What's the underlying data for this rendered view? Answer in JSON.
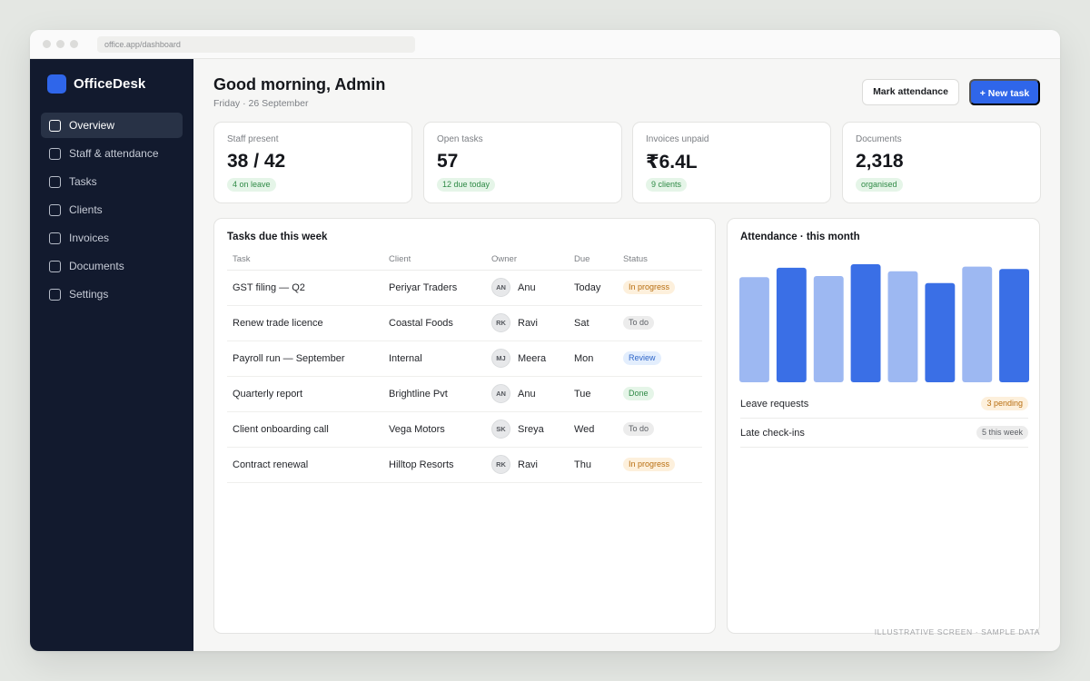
{
  "browser": {
    "url": "office.app/dashboard"
  },
  "sidebar": {
    "brand": "OfficeDesk",
    "items": [
      {
        "label": "Overview",
        "active": true
      },
      {
        "label": "Staff & attendance"
      },
      {
        "label": "Tasks"
      },
      {
        "label": "Clients"
      },
      {
        "label": "Invoices"
      },
      {
        "label": "Documents"
      },
      {
        "label": "Settings"
      }
    ]
  },
  "header": {
    "greeting": "Good morning, Admin",
    "date": "Friday · 26 September",
    "mark_attendance": "Mark attendance",
    "new_task": "+ New task"
  },
  "stats": [
    {
      "label": "Staff present",
      "value": "38 / 42",
      "badge": "4 on leave"
    },
    {
      "label": "Open tasks",
      "value": "57",
      "badge": "12 due today"
    },
    {
      "label": "Invoices unpaid",
      "value": "₹6.4L",
      "badge": "9 clients"
    },
    {
      "label": "Documents",
      "value": "2,318",
      "badge": "organised"
    }
  ],
  "tasks": {
    "title": "Tasks due this week",
    "columns": [
      "Task",
      "Client",
      "Owner",
      "Due",
      "Status"
    ],
    "rows": [
      {
        "task": "GST filing — Q2",
        "client": "Periyar Traders",
        "initials": "AN",
        "owner": "Anu",
        "due": "Today",
        "status": "In progress"
      },
      {
        "task": "Renew trade licence",
        "client": "Coastal Foods",
        "initials": "RK",
        "owner": "Ravi",
        "due": "Sat",
        "status": "To do"
      },
      {
        "task": "Payroll run — September",
        "client": "Internal",
        "initials": "MJ",
        "owner": "Meera",
        "due": "Mon",
        "status": "Review"
      },
      {
        "task": "Quarterly report",
        "client": "Brightline Pvt",
        "initials": "AN",
        "owner": "Anu",
        "due": "Tue",
        "status": "Done"
      },
      {
        "task": "Client onboarding call",
        "client": "Vega Motors",
        "initials": "SK",
        "owner": "Sreya",
        "due": "Wed",
        "status": "To do"
      },
      {
        "task": "Contract renewal",
        "client": "Hilltop Resorts",
        "initials": "RK",
        "owner": "Ravi",
        "due": "Thu",
        "status": "In progress"
      }
    ]
  },
  "status_colors": {
    "In progress": "amber",
    "To do": "grey",
    "Review": "blue",
    "Done": "green"
  },
  "attendance": {
    "title": "Attendance · this month",
    "bars": [
      0.89,
      0.97,
      0.9,
      1.0,
      0.94,
      0.84,
      0.98,
      0.96
    ],
    "bar_colors": [
      "#9db8f2",
      "#3a6fe6",
      "#9db8f2",
      "#3a6fe6",
      "#9db8f2",
      "#3a6fe6",
      "#9db8f2",
      "#3a6fe6"
    ],
    "metrics": [
      {
        "label": "Leave requests",
        "badge": "3 pending",
        "tone": "amber"
      },
      {
        "label": "Late check-ins",
        "badge": "5 this week",
        "tone": "grey"
      }
    ]
  },
  "footer": "ILLUSTRATIVE SCREEN · SAMPLE DATA"
}
